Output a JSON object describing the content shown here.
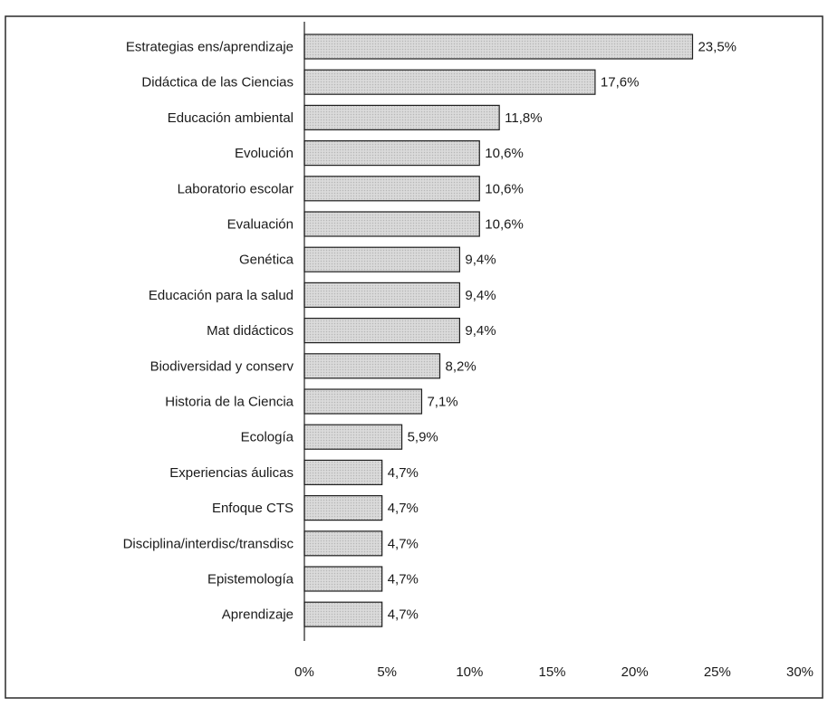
{
  "chart_data": {
    "type": "bar",
    "orientation": "horizontal",
    "title": "",
    "xlabel": "",
    "ylabel": "",
    "xlim": [
      0,
      30
    ],
    "x_ticks": [
      "0%",
      "5%",
      "10%",
      "15%",
      "20%",
      "25%",
      "30%"
    ],
    "x_tick_values": [
      0,
      5,
      10,
      15,
      20,
      25,
      30
    ],
    "grid": false,
    "legend": "none",
    "bar_color": "#d4d4d4",
    "bar_edge_color": "#1f1f1f",
    "categories": [
      "Estrategias ens/aprendizaje",
      "Didáctica de las Ciencias",
      "Educación ambiental",
      "Evolución",
      "Laboratorio escolar",
      "Evaluación",
      "Genética",
      "Educación para la salud",
      "Mat didácticos",
      "Biodiversidad y conserv",
      "Historia de la Ciencia",
      "Ecología",
      "Experiencias áulicas",
      "Enfoque CTS",
      "Disciplina/interdisc/transdisc",
      "Epistemología",
      "Aprendizaje"
    ],
    "values": [
      23.5,
      17.6,
      11.8,
      10.6,
      10.6,
      10.6,
      9.4,
      9.4,
      9.4,
      8.2,
      7.1,
      5.9,
      4.7,
      4.7,
      4.7,
      4.7,
      4.7
    ],
    "value_labels": [
      "23,5%",
      "17,6%",
      "11,8%",
      "10,6%",
      "10,6%",
      "10,6%",
      "9,4%",
      "9,4%",
      "9,4%",
      "8,2%",
      "7,1%",
      "5,9%",
      "4,7%",
      "4,7%",
      "4,7%",
      "4,7%",
      "4,7%"
    ]
  }
}
